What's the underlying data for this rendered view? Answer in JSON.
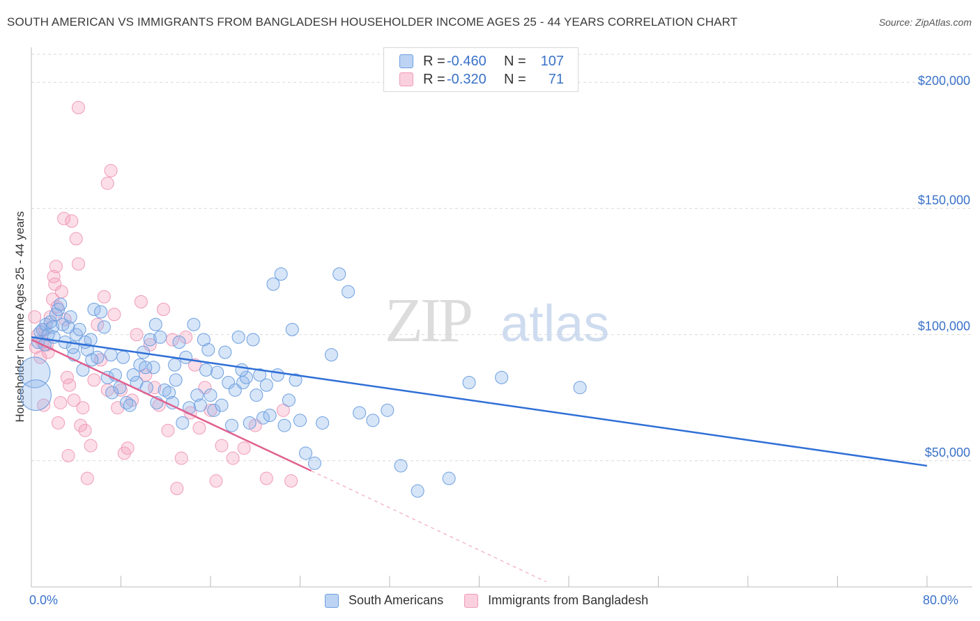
{
  "header": {
    "title": "SOUTH AMERICAN VS IMMIGRANTS FROM BANGLADESH HOUSEHOLDER INCOME AGES 25 - 44 YEARS CORRELATION CHART",
    "source": "Source: ZipAtlas.com"
  },
  "watermark": {
    "zip": "ZIP",
    "atlas": "atlas"
  },
  "legend_top": {
    "rows": [
      {
        "r_label": "R =",
        "r_value": "-0.460",
        "n_label": "N =",
        "n_value": "107"
      },
      {
        "r_label": "R =",
        "r_value": "-0.320",
        "n_label": "N =",
        "n_value": "71"
      }
    ]
  },
  "chart_data": {
    "type": "scatter",
    "title": "SOUTH AMERICAN VS IMMIGRANTS FROM BANGLADESH HOUSEHOLDER INCOME AGES 25 - 44 YEARS CORRELATION CHART",
    "ylabel": "Householder Income Ages 25 - 44 years",
    "xlabel": "",
    "xlim": [
      0,
      80
    ],
    "ylim": [
      0,
      210000
    ],
    "x_tick_labels": [
      "0.0%",
      "80.0%"
    ],
    "y_ticks": [
      50000,
      100000,
      150000,
      200000
    ],
    "y_tick_labels": [
      "$50,000",
      "$100,000",
      "$150,000",
      "$200,000"
    ],
    "grid": true,
    "legend_placement": "top-center and bottom",
    "colors": {
      "south_american": "#6c9fe0",
      "bangladesh": "#f09ab8",
      "blue_line": "#2f6fd6",
      "pink_line": "#e0608e"
    },
    "series": [
      {
        "name": "South Americans",
        "r": -0.46,
        "n": 107,
        "trend": {
          "x": [
            0,
            80
          ],
          "y": [
            99000,
            48000
          ]
        },
        "points": [
          [
            0.3,
            85000
          ],
          [
            0.4,
            76000
          ],
          [
            0.6,
            97000
          ],
          [
            0.8,
            101000
          ],
          [
            1.0,
            102000
          ],
          [
            1.2,
            96000
          ],
          [
            1.3,
            104000
          ],
          [
            1.5,
            100000
          ],
          [
            1.7,
            105000
          ],
          [
            1.9,
            103000
          ],
          [
            2.0,
            99000
          ],
          [
            2.2,
            108000
          ],
          [
            2.4,
            110000
          ],
          [
            2.6,
            112000
          ],
          [
            2.8,
            104000
          ],
          [
            3.0,
            97000
          ],
          [
            3.3,
            103000
          ],
          [
            3.5,
            107000
          ],
          [
            3.8,
            92000
          ],
          [
            4.0,
            100000
          ],
          [
            4.3,
            102000
          ],
          [
            4.6,
            86000
          ],
          [
            5.0,
            94000
          ],
          [
            5.3,
            98000
          ],
          [
            5.6,
            110000
          ],
          [
            5.9,
            91000
          ],
          [
            6.2,
            109000
          ],
          [
            6.5,
            103000
          ],
          [
            6.8,
            83000
          ],
          [
            7.1,
            92000
          ],
          [
            7.5,
            84000
          ],
          [
            7.9,
            79000
          ],
          [
            8.2,
            91000
          ],
          [
            8.5,
            73000
          ],
          [
            8.8,
            72000
          ],
          [
            9.1,
            84000
          ],
          [
            9.4,
            81000
          ],
          [
            9.7,
            88000
          ],
          [
            10.0,
            93000
          ],
          [
            10.3,
            79000
          ],
          [
            10.6,
            98000
          ],
          [
            10.9,
            87000
          ],
          [
            11.2,
            73000
          ],
          [
            11.5,
            99000
          ],
          [
            11.9,
            78000
          ],
          [
            12.3,
            77000
          ],
          [
            12.6,
            73000
          ],
          [
            12.9,
            82000
          ],
          [
            13.2,
            97000
          ],
          [
            13.5,
            65000
          ],
          [
            13.8,
            91000
          ],
          [
            14.1,
            71000
          ],
          [
            14.5,
            104000
          ],
          [
            14.8,
            76000
          ],
          [
            15.1,
            72000
          ],
          [
            15.4,
            98000
          ],
          [
            15.8,
            94000
          ],
          [
            16.0,
            76000
          ],
          [
            16.3,
            70000
          ],
          [
            16.6,
            85000
          ],
          [
            17.0,
            72000
          ],
          [
            17.3,
            93000
          ],
          [
            17.6,
            81000
          ],
          [
            17.9,
            64000
          ],
          [
            18.2,
            78000
          ],
          [
            18.5,
            99000
          ],
          [
            18.9,
            81000
          ],
          [
            19.2,
            83000
          ],
          [
            19.5,
            65000
          ],
          [
            19.8,
            98000
          ],
          [
            20.1,
            76000
          ],
          [
            20.4,
            84000
          ],
          [
            20.7,
            67000
          ],
          [
            21.0,
            80000
          ],
          [
            21.3,
            68000
          ],
          [
            21.6,
            120000
          ],
          [
            22.0,
            84000
          ],
          [
            22.3,
            124000
          ],
          [
            22.6,
            64000
          ],
          [
            23.0,
            74000
          ],
          [
            23.3,
            102000
          ],
          [
            23.6,
            82000
          ],
          [
            24.0,
            66000
          ],
          [
            24.5,
            53000
          ],
          [
            25.3,
            49000
          ],
          [
            26.0,
            65000
          ],
          [
            26.8,
            92000
          ],
          [
            27.5,
            124000
          ],
          [
            28.3,
            117000
          ],
          [
            29.3,
            69000
          ],
          [
            30.5,
            66000
          ],
          [
            31.8,
            70000
          ],
          [
            33.0,
            48000
          ],
          [
            34.5,
            38000
          ],
          [
            37.3,
            43000
          ],
          [
            39.1,
            81000
          ],
          [
            42.0,
            83000
          ],
          [
            49.0,
            79000
          ],
          [
            10.2,
            87000
          ],
          [
            11.1,
            104000
          ],
          [
            7.2,
            77000
          ],
          [
            5.4,
            90000
          ],
          [
            4.8,
            97000
          ],
          [
            12.8,
            88000
          ],
          [
            15.6,
            86000
          ],
          [
            18.8,
            86000
          ],
          [
            3.7,
            95000
          ]
        ]
      },
      {
        "name": "Immigrants from Bangladesh",
        "r": -0.32,
        "n": 71,
        "trend": {
          "x": [
            0,
            25
          ],
          "y": [
            98000,
            46000
          ]
        },
        "trend_dashed": {
          "x": [
            25,
            46
          ],
          "y": [
            46000,
            2000
          ]
        },
        "points": [
          [
            0.3,
            107000
          ],
          [
            0.4,
            95000
          ],
          [
            0.6,
            100000
          ],
          [
            0.8,
            91000
          ],
          [
            1.0,
            97000
          ],
          [
            1.2,
            102000
          ],
          [
            1.4,
            96000
          ],
          [
            1.5,
            93000
          ],
          [
            1.7,
            107000
          ],
          [
            1.9,
            114000
          ],
          [
            2.0,
            123000
          ],
          [
            2.1,
            120000
          ],
          [
            2.3,
            111000
          ],
          [
            2.4,
            65000
          ],
          [
            2.6,
            73000
          ],
          [
            2.7,
            117000
          ],
          [
            2.9,
            146000
          ],
          [
            3.0,
            106000
          ],
          [
            3.2,
            83000
          ],
          [
            3.4,
            80000
          ],
          [
            3.6,
            145000
          ],
          [
            3.8,
            74000
          ],
          [
            4.0,
            138000
          ],
          [
            4.2,
            128000
          ],
          [
            4.4,
            64000
          ],
          [
            4.6,
            71000
          ],
          [
            4.8,
            62000
          ],
          [
            5.0,
            43000
          ],
          [
            5.3,
            56000
          ],
          [
            5.6,
            82000
          ],
          [
            5.9,
            104000
          ],
          [
            6.2,
            90000
          ],
          [
            6.5,
            115000
          ],
          [
            6.8,
            78000
          ],
          [
            7.1,
            165000
          ],
          [
            7.4,
            108000
          ],
          [
            7.7,
            71000
          ],
          [
            8.0,
            78000
          ],
          [
            8.3,
            53000
          ],
          [
            8.6,
            55000
          ],
          [
            9.0,
            74000
          ],
          [
            9.4,
            100000
          ],
          [
            9.8,
            113000
          ],
          [
            10.2,
            84000
          ],
          [
            10.6,
            96000
          ],
          [
            11.0,
            79000
          ],
          [
            11.4,
            72000
          ],
          [
            11.8,
            110000
          ],
          [
            12.2,
            62000
          ],
          [
            12.6,
            98000
          ],
          [
            13.0,
            39000
          ],
          [
            13.4,
            51000
          ],
          [
            13.8,
            99000
          ],
          [
            14.2,
            69000
          ],
          [
            14.6,
            88000
          ],
          [
            15.0,
            63000
          ],
          [
            15.5,
            79000
          ],
          [
            16.0,
            70000
          ],
          [
            16.5,
            42000
          ],
          [
            17.0,
            56000
          ],
          [
            18.0,
            51000
          ],
          [
            19.0,
            55000
          ],
          [
            20.0,
            64000
          ],
          [
            21.0,
            43000
          ],
          [
            22.5,
            70000
          ],
          [
            23.2,
            42000
          ],
          [
            4.2,
            190000
          ],
          [
            6.8,
            160000
          ],
          [
            2.2,
            127000
          ],
          [
            1.1,
            72000
          ],
          [
            3.3,
            52000
          ]
        ]
      }
    ]
  },
  "legend_bottom": {
    "items": [
      {
        "label": "South Americans"
      },
      {
        "label": "Immigrants from Bangladesh"
      }
    ]
  }
}
